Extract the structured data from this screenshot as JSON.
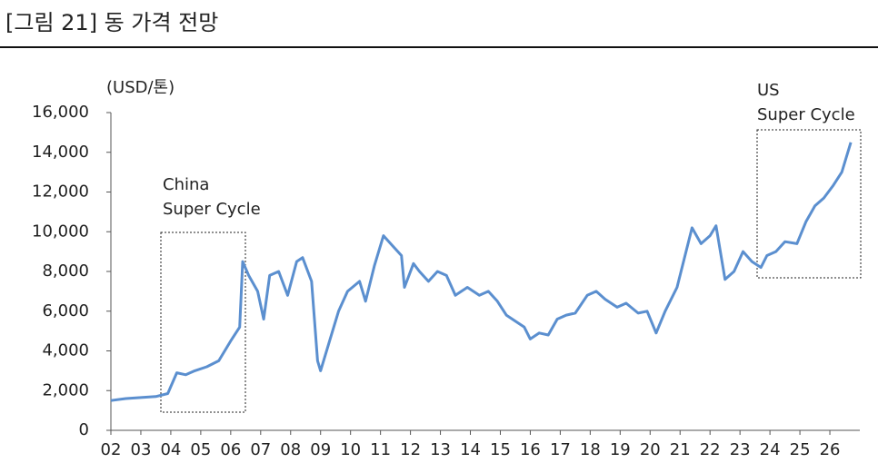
{
  "chart_data": {
    "type": "line",
    "title": "[그림 21] 동 가격 전망",
    "y_unit_label": "(USD/톤)",
    "annotations": [
      {
        "lines": [
          "China",
          "Super Cycle"
        ]
      },
      {
        "lines": [
          "US",
          "Super Cycle"
        ]
      }
    ],
    "xlim": [
      2002,
      2027
    ],
    "xticks": [
      {
        "value": 2002,
        "label": "02"
      },
      {
        "value": 2003,
        "label": "03"
      },
      {
        "value": 2004,
        "label": "04"
      },
      {
        "value": 2005,
        "label": "05"
      },
      {
        "value": 2006,
        "label": "06"
      },
      {
        "value": 2007,
        "label": "07"
      },
      {
        "value": 2008,
        "label": "08"
      },
      {
        "value": 2009,
        "label": "09"
      },
      {
        "value": 2010,
        "label": "10"
      },
      {
        "value": 2011,
        "label": "11"
      },
      {
        "value": 2012,
        "label": "12"
      },
      {
        "value": 2013,
        "label": "13"
      },
      {
        "value": 2014,
        "label": "14"
      },
      {
        "value": 2015,
        "label": "15"
      },
      {
        "value": 2016,
        "label": "16"
      },
      {
        "value": 2017,
        "label": "17"
      },
      {
        "value": 2018,
        "label": "18"
      },
      {
        "value": 2019,
        "label": "19"
      },
      {
        "value": 2020,
        "label": "20"
      },
      {
        "value": 2021,
        "label": "21"
      },
      {
        "value": 2022,
        "label": "22"
      },
      {
        "value": 2023,
        "label": "23"
      },
      {
        "value": 2024,
        "label": "24"
      },
      {
        "value": 2025,
        "label": "25"
      },
      {
        "value": 2026,
        "label": "26"
      }
    ],
    "ylim": [
      0,
      16000
    ],
    "yticks": [
      0,
      {
        "value": 2000,
        "label": "2,000"
      },
      {
        "value": 4000,
        "label": "4,000"
      },
      {
        "value": 6000,
        "label": "6,000"
      },
      {
        "value": 8000,
        "label": "8,000"
      },
      {
        "value": 10000,
        "label": "10,000"
      },
      {
        "value": 12000,
        "label": "12,000"
      },
      {
        "value": 14000,
        "label": "14,000"
      },
      {
        "value": 16000,
        "label": "16,000"
      }
    ],
    "color": "#5b8fcf",
    "x": [
      2002.0,
      2002.5,
      2003.0,
      2003.5,
      2003.9,
      2004.2,
      2004.5,
      2004.8,
      2005.2,
      2005.6,
      2006.0,
      2006.3,
      2006.4,
      2006.6,
      2006.9,
      2007.1,
      2007.3,
      2007.6,
      2007.9,
      2008.2,
      2008.4,
      2008.7,
      2008.9,
      2009.0,
      2009.3,
      2009.6,
      2009.9,
      2010.3,
      2010.5,
      2010.8,
      2011.1,
      2011.4,
      2011.7,
      2011.8,
      2012.1,
      2012.3,
      2012.6,
      2012.9,
      2013.2,
      2013.5,
      2013.9,
      2014.3,
      2014.6,
      2014.9,
      2015.2,
      2015.5,
      2015.8,
      2016.0,
      2016.3,
      2016.6,
      2016.9,
      2017.2,
      2017.5,
      2017.9,
      2018.2,
      2018.5,
      2018.9,
      2019.2,
      2019.6,
      2019.9,
      2020.2,
      2020.5,
      2020.9,
      2021.2,
      2021.4,
      2021.7,
      2022.0,
      2022.2,
      2022.5,
      2022.8,
      2023.1,
      2023.4,
      2023.7,
      2023.9,
      2024.2,
      2024.5,
      2024.9,
      2025.2,
      2025.5,
      2025.8,
      2026.1,
      2026.4,
      2026.7
    ],
    "values": [
      1500,
      1600,
      1650,
      1700,
      1850,
      2900,
      2800,
      3000,
      3200,
      3500,
      4500,
      5200,
      8500,
      7800,
      7000,
      5600,
      7800,
      8000,
      6800,
      8500,
      8700,
      7500,
      3500,
      3000,
      4500,
      6000,
      7000,
      7500,
      6500,
      8300,
      9800,
      9300,
      8800,
      7200,
      8400,
      8000,
      7500,
      8000,
      7800,
      6800,
      7200,
      6800,
      7000,
      6500,
      5800,
      5500,
      5200,
      4600,
      4900,
      4800,
      5600,
      5800,
      5900,
      6800,
      7000,
      6600,
      6200,
      6400,
      5900,
      6000,
      4900,
      6000,
      7200,
      9000,
      10200,
      9400,
      9800,
      10300,
      7600,
      8000,
      9000,
      8500,
      8200,
      8800,
      9000,
      9500,
      9400,
      10500,
      11300,
      11700,
      12300,
      13000,
      14500
    ]
  }
}
